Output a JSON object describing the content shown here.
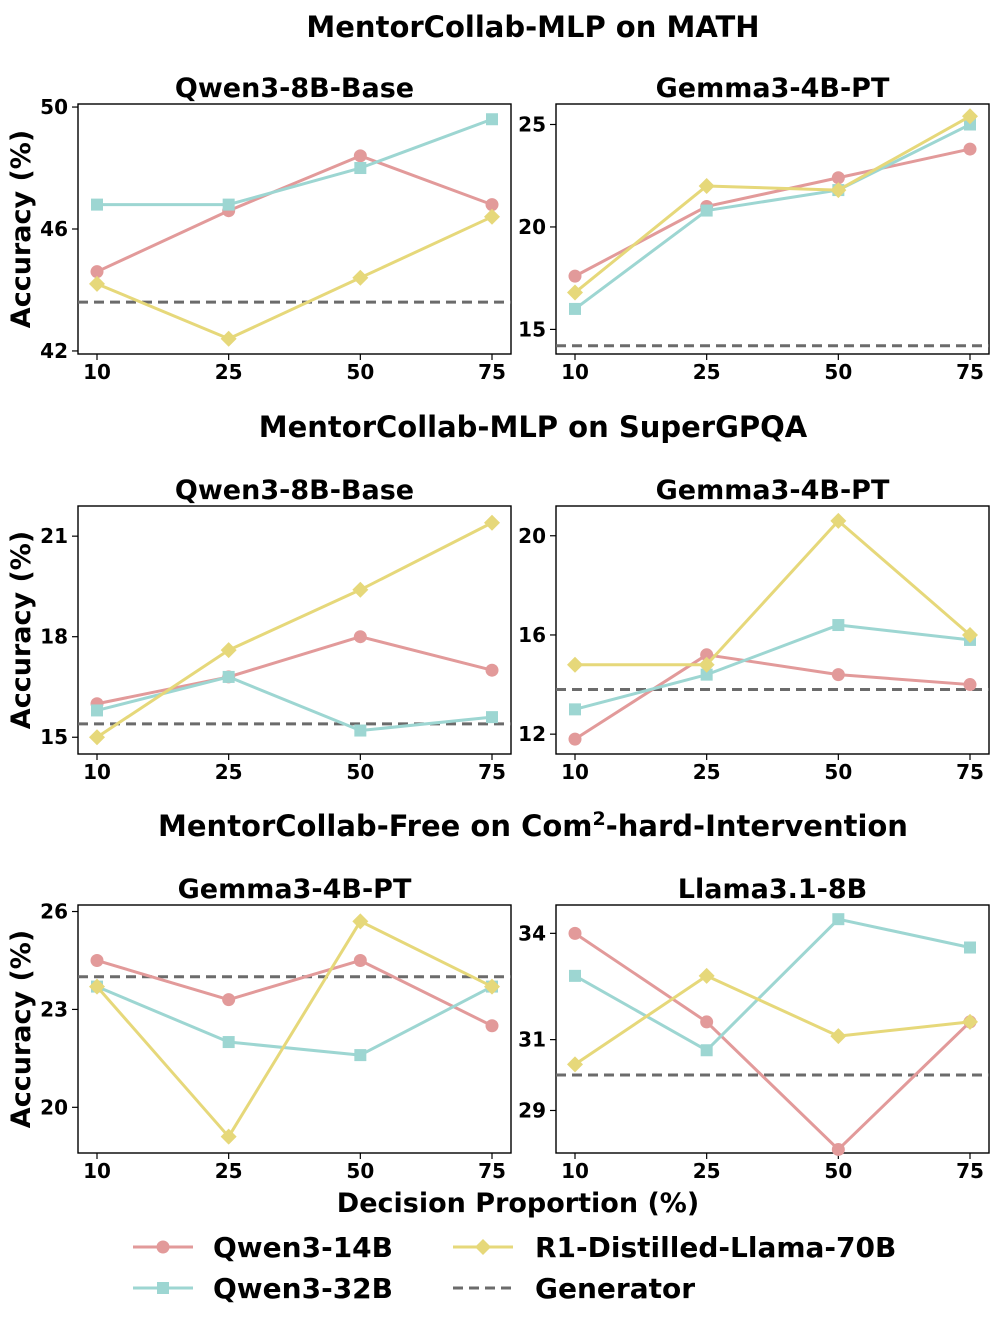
{
  "colors": {
    "qwen3_14b": "#e29a9a",
    "qwen3_32b": "#9dd6d2",
    "r1_llama70b": "#e6d87a",
    "generator": "#6b6b6b"
  },
  "figure": {
    "xlabel": "Decision Proportion (%)",
    "ylabel": "Accuracy (%)"
  },
  "sections": [
    {
      "title": "MentorCollab-MLP on MATH"
    },
    {
      "title": "MentorCollab-MLP on SuperGPQA"
    },
    {
      "title_prefix": "MentorCollab-Free on Com",
      "title_sup": "2",
      "title_suffix": "-hard-Intervention"
    }
  ],
  "legend": [
    {
      "label": "Qwen3-14B",
      "marker": "circle",
      "dashed": false,
      "color_key": "qwen3_14b"
    },
    {
      "label": "R1-Distilled-Llama-70B",
      "marker": "diamond",
      "dashed": false,
      "color_key": "r1_llama70b"
    },
    {
      "label": "Qwen3-32B",
      "marker": "square",
      "dashed": false,
      "color_key": "qwen3_32b"
    },
    {
      "label": "Generator",
      "marker": "none",
      "dashed": true,
      "color_key": "generator"
    }
  ],
  "chart_data": [
    {
      "type": "line",
      "title": "Qwen3-8B-Base",
      "section": "MentorCollab-MLP on MATH",
      "categories": [
        "10",
        "25",
        "50",
        "75"
      ],
      "ylim": [
        41.9,
        50.1
      ],
      "yticks": [
        42,
        46,
        50
      ],
      "ylabel": "Accuracy (%)",
      "xlabel": "",
      "series": [
        {
          "name": "Qwen3-14B",
          "values": [
            44.6,
            46.6,
            48.4,
            46.8
          ]
        },
        {
          "name": "Qwen3-32B",
          "values": [
            46.8,
            46.8,
            48.0,
            49.6
          ]
        },
        {
          "name": "R1-Distilled-Llama-70B",
          "values": [
            44.2,
            42.4,
            44.4,
            46.4
          ]
        }
      ],
      "generator": 43.6
    },
    {
      "type": "line",
      "title": "Gemma3-4B-PT",
      "section": "MentorCollab-MLP on MATH",
      "categories": [
        "10",
        "25",
        "50",
        "75"
      ],
      "ylim": [
        13.8,
        26.0
      ],
      "yticks": [
        15,
        20,
        25
      ],
      "ylabel": "",
      "xlabel": "",
      "series": [
        {
          "name": "Qwen3-14B",
          "values": [
            17.6,
            21.0,
            22.4,
            23.8
          ]
        },
        {
          "name": "Qwen3-32B",
          "values": [
            16.0,
            20.8,
            21.8,
            25.0
          ]
        },
        {
          "name": "R1-Distilled-Llama-70B",
          "values": [
            16.8,
            22.0,
            21.8,
            25.4
          ]
        }
      ],
      "generator": 14.2
    },
    {
      "type": "line",
      "title": "Qwen3-8B-Base",
      "section": "MentorCollab-MLP on SuperGPQA",
      "categories": [
        "10",
        "25",
        "50",
        "75"
      ],
      "ylim": [
        14.5,
        21.9
      ],
      "yticks": [
        15,
        18,
        21
      ],
      "ylabel": "Accuracy (%)",
      "xlabel": "",
      "series": [
        {
          "name": "Qwen3-14B",
          "values": [
            16.0,
            16.8,
            18.0,
            17.0
          ]
        },
        {
          "name": "Qwen3-32B",
          "values": [
            15.8,
            16.8,
            15.2,
            15.6
          ]
        },
        {
          "name": "R1-Distilled-Llama-70B",
          "values": [
            15.0,
            17.6,
            19.4,
            21.4
          ]
        }
      ],
      "generator": 15.4
    },
    {
      "type": "line",
      "title": "Gemma3-4B-PT",
      "section": "MentorCollab-MLP on SuperGPQA",
      "categories": [
        "10",
        "25",
        "50",
        "75"
      ],
      "ylim": [
        11.2,
        21.2
      ],
      "yticks": [
        12,
        16,
        20
      ],
      "ylabel": "",
      "xlabel": "",
      "series": [
        {
          "name": "Qwen3-14B",
          "values": [
            11.8,
            15.2,
            14.4,
            14.0
          ]
        },
        {
          "name": "Qwen3-32B",
          "values": [
            13.0,
            14.4,
            16.4,
            15.8
          ]
        },
        {
          "name": "R1-Distilled-Llama-70B",
          "values": [
            14.8,
            14.8,
            20.6,
            16.0
          ]
        }
      ],
      "generator": 13.8
    },
    {
      "type": "line",
      "title": "Gemma3-4B-PT",
      "section": "MentorCollab-Free on Com2-hard-Intervention",
      "categories": [
        "10",
        "25",
        "50",
        "75"
      ],
      "ylim": [
        18.6,
        26.2
      ],
      "yticks": [
        20,
        23,
        26
      ],
      "ylabel": "Accuracy (%)",
      "xlabel": "Decision Proportion (%)",
      "series": [
        {
          "name": "Qwen3-14B",
          "values": [
            24.5,
            23.3,
            24.5,
            22.5
          ]
        },
        {
          "name": "Qwen3-32B",
          "values": [
            23.7,
            22.0,
            21.6,
            23.7
          ]
        },
        {
          "name": "R1-Distilled-Llama-70B",
          "values": [
            23.7,
            19.1,
            25.7,
            23.7
          ]
        }
      ],
      "generator": 24.0
    },
    {
      "type": "line",
      "title": "Llama3.1-8B",
      "section": "MentorCollab-Free on Com2-hard-Intervention",
      "categories": [
        "10",
        "25",
        "50",
        "75"
      ],
      "ylim": [
        27.8,
        34.8
      ],
      "yticks": [
        29,
        31,
        34
      ],
      "ylabel": "",
      "xlabel": "Decision Proportion (%)",
      "series": [
        {
          "name": "Qwen3-14B",
          "values": [
            34.0,
            31.5,
            27.9,
            31.5
          ]
        },
        {
          "name": "Qwen3-32B",
          "values": [
            32.8,
            30.7,
            34.4,
            33.6
          ]
        },
        {
          "name": "R1-Distilled-Llama-70B",
          "values": [
            30.3,
            32.8,
            31.1,
            31.5
          ]
        }
      ],
      "generator": 30.0
    }
  ]
}
